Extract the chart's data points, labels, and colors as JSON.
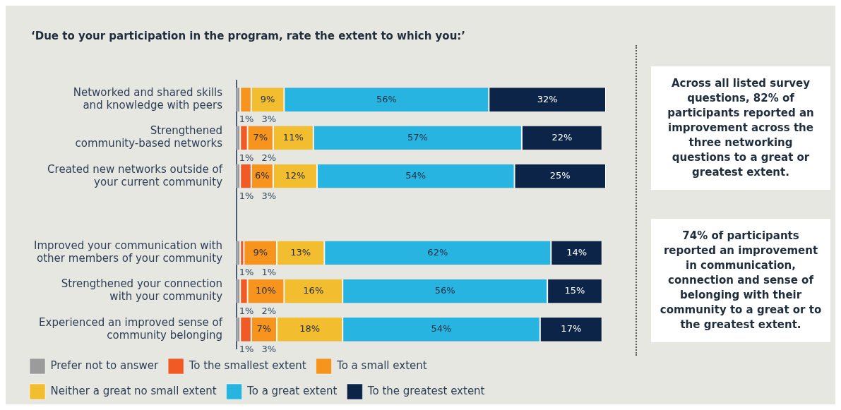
{
  "chart_data": {
    "type": "bar",
    "orientation": "horizontal",
    "stacked": true,
    "title": "‘Due to your participation in the program, rate the extent to which you:’",
    "categories": [
      "Networked and shared skills\nand knowledge with peers",
      "Strengthened\ncommunity-based networks",
      "Created new networks outside of\nyour current community",
      null,
      "Improved your communication with\nother members of your community",
      "Strengthened your connection\nwith your community",
      "Experienced an improved sense of\ncommunity belonging"
    ],
    "series": [
      {
        "name": "Prefer not to answer",
        "color": "#9b9b9b",
        "values": [
          1,
          1,
          1,
          null,
          1,
          1,
          1
        ],
        "value_labels": [
          "1%",
          "1%",
          "1%",
          null,
          "1%",
          "1%",
          "1%"
        ]
      },
      {
        "name": "To the smallest extent",
        "color": "#f15a24",
        "values": [
          null,
          2,
          3,
          null,
          1,
          2,
          3
        ],
        "value_labels": [
          null,
          "2%",
          "3%",
          null,
          "1%",
          "2%",
          "3%"
        ]
      },
      {
        "name": "To a small extent",
        "color": "#f7941d",
        "values": [
          3,
          7,
          6,
          null,
          9,
          10,
          7
        ],
        "value_labels": [
          "3%",
          "7%",
          "6%",
          null,
          "9%",
          "10%",
          "7%"
        ]
      },
      {
        "name": "Neither a great no small extent",
        "color": "#f2bd2f",
        "values": [
          9,
          11,
          12,
          null,
          13,
          16,
          18
        ],
        "value_labels": [
          "9%",
          "11%",
          "12%",
          null,
          "13%",
          "16%",
          "18%"
        ]
      },
      {
        "name": "To a great extent",
        "color": "#27b4e1",
        "values": [
          56,
          57,
          54,
          null,
          62,
          56,
          54
        ],
        "value_labels": [
          "56%",
          "57%",
          "54%",
          null,
          "62%",
          "56%",
          "54%"
        ]
      },
      {
        "name": "To the greatest extent",
        "color": "#0b2447",
        "values": [
          32,
          22,
          25,
          null,
          14,
          15,
          17
        ],
        "value_labels": [
          "32%",
          "22%",
          "25%",
          null,
          "14%",
          "15%",
          "17%"
        ]
      }
    ],
    "legend": "bottom",
    "grid": false,
    "annotations": [
      "Across all listed survey questions, 82% of participants reported an improvement across the three networking questions to a great or greatest extent.",
      "74% of participants reported an improvement in communication, connection and sense of belonging with their community to a great or to the greatest extent."
    ]
  }
}
